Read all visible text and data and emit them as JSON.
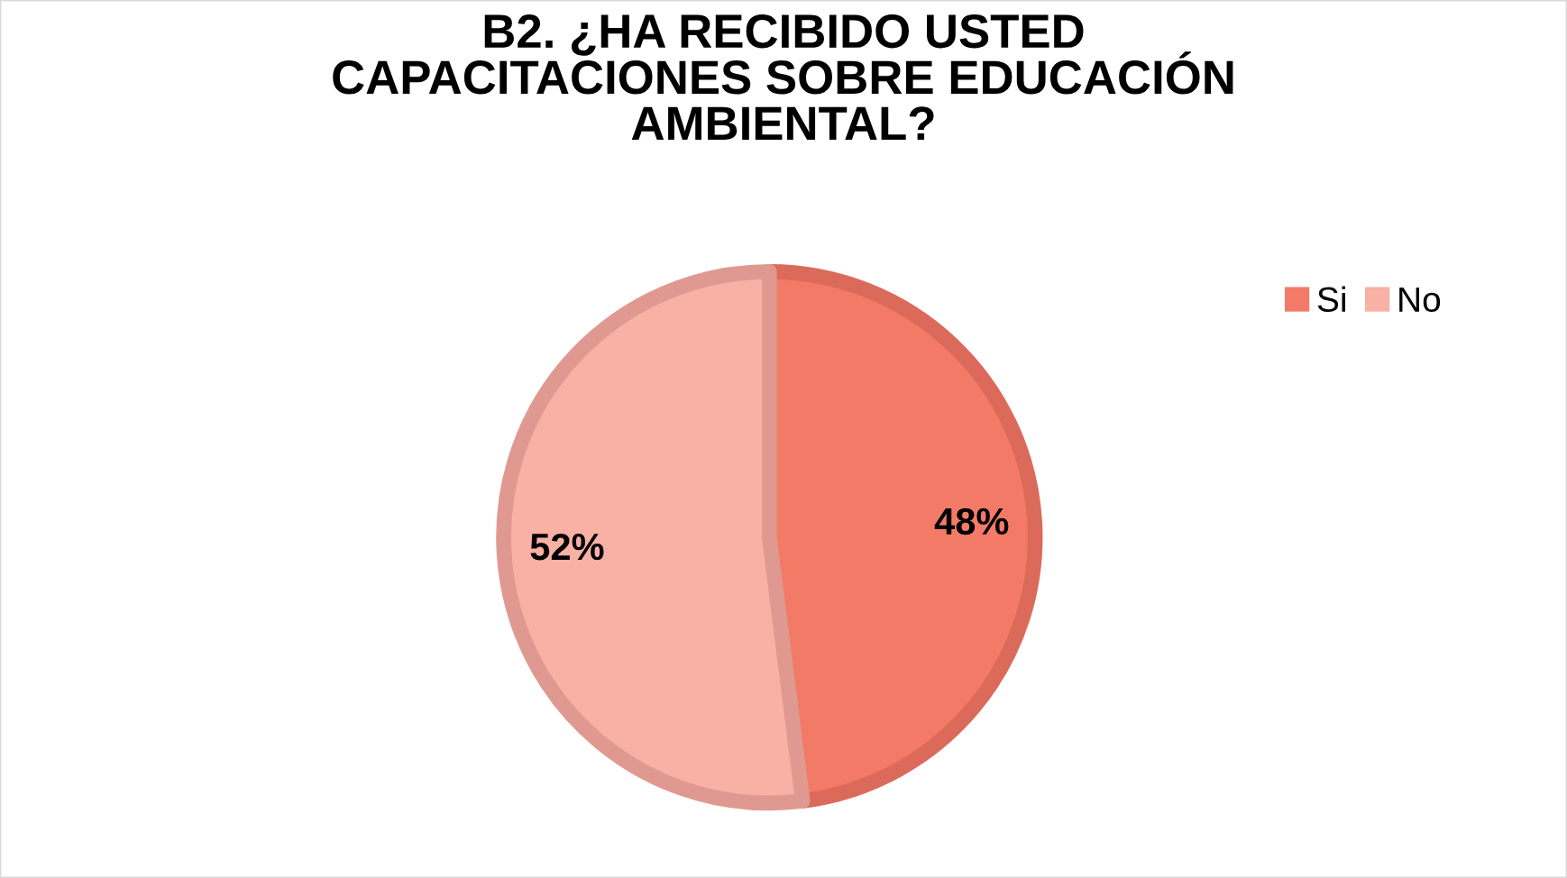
{
  "chart_data": {
    "type": "pie",
    "title": "B2. ¿HA RECIBIDO USTED\nCAPACITACIONES SOBRE EDUCACIÓN\nAMBIENTAL?",
    "categories": [
      "Si",
      "No"
    ],
    "values": [
      48,
      52
    ],
    "colors": [
      "#f47a68",
      "#f9b0a5"
    ],
    "value_labels": [
      "48%",
      "52%"
    ],
    "legend": "top right"
  }
}
